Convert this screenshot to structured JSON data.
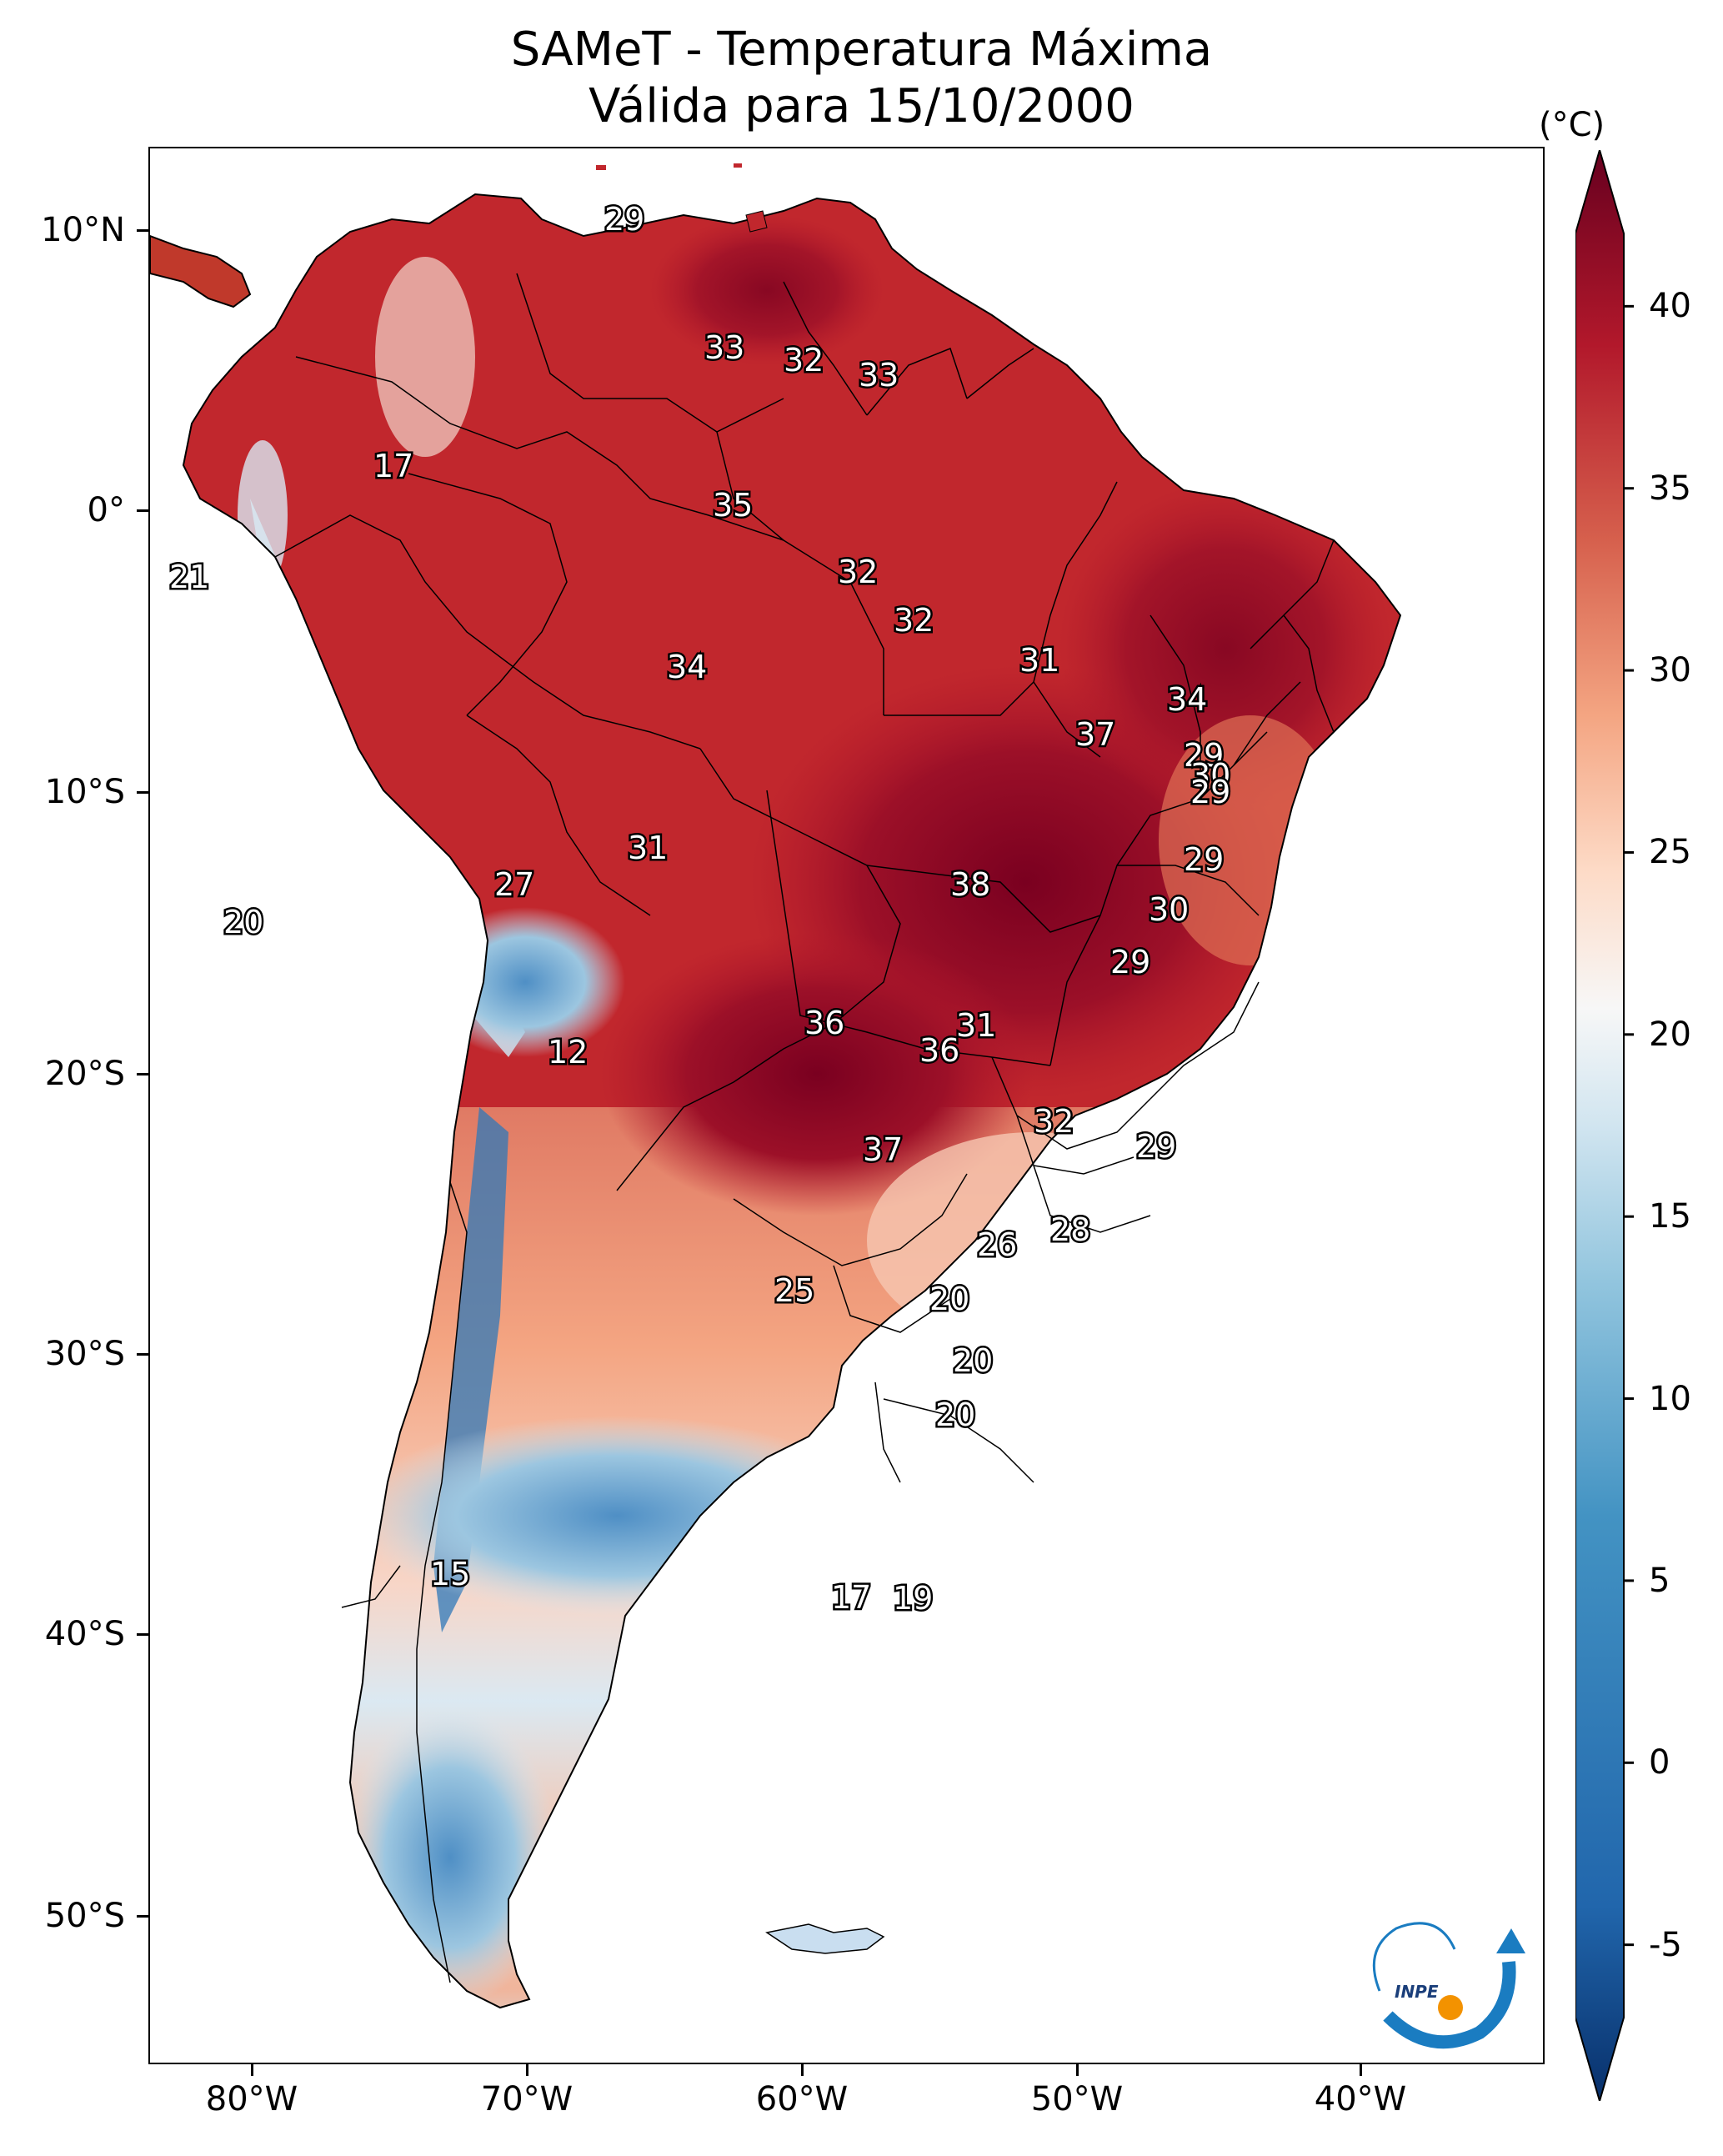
{
  "title_line1": "SAMeT - Temperatura Máxima",
  "title_line2": "Válida para 15/10/2000",
  "colorbar": {
    "unit": "(°C)",
    "ticks": [
      "40",
      "35",
      "30",
      "25",
      "20",
      "15",
      "10",
      "5",
      "0",
      "-5"
    ],
    "min": -7,
    "max": 42,
    "colors": [
      "#08306b",
      "#2166ac",
      "#4393c3",
      "#92c5de",
      "#d1e5f0",
      "#f7f7f7",
      "#fddbc7",
      "#f4a582",
      "#d6604d",
      "#b2182b",
      "#67001f"
    ]
  },
  "axes": {
    "lat_labels": [
      "10°N",
      "0°",
      "10°S",
      "20°S",
      "30°S",
      "40°S",
      "50°S"
    ],
    "lon_labels": [
      "80°W",
      "70°W",
      "60°W",
      "50°W",
      "40°W"
    ]
  },
  "logo": {
    "text": "INPE"
  },
  "map_labels": [
    {
      "v": "29"
    },
    {
      "v": "33"
    },
    {
      "v": "32"
    },
    {
      "v": "33"
    },
    {
      "v": "17"
    },
    {
      "v": "35"
    },
    {
      "v": "21"
    },
    {
      "v": "32"
    },
    {
      "v": "32"
    },
    {
      "v": "34"
    },
    {
      "v": "31"
    },
    {
      "v": "34"
    },
    {
      "v": "37"
    },
    {
      "v": "29"
    },
    {
      "v": "30"
    },
    {
      "v": "29"
    },
    {
      "v": "31"
    },
    {
      "v": "27"
    },
    {
      "v": "38"
    },
    {
      "v": "29"
    },
    {
      "v": "30"
    },
    {
      "v": "20"
    },
    {
      "v": "29"
    },
    {
      "v": "31"
    },
    {
      "v": "36"
    },
    {
      "v": "36"
    },
    {
      "v": "12"
    },
    {
      "v": "32"
    },
    {
      "v": "29"
    },
    {
      "v": "37"
    },
    {
      "v": "28"
    },
    {
      "v": "26"
    },
    {
      "v": "25"
    },
    {
      "v": "20"
    },
    {
      "v": "20"
    },
    {
      "v": "20"
    },
    {
      "v": "15"
    },
    {
      "v": "17"
    },
    {
      "v": "19"
    }
  ]
}
